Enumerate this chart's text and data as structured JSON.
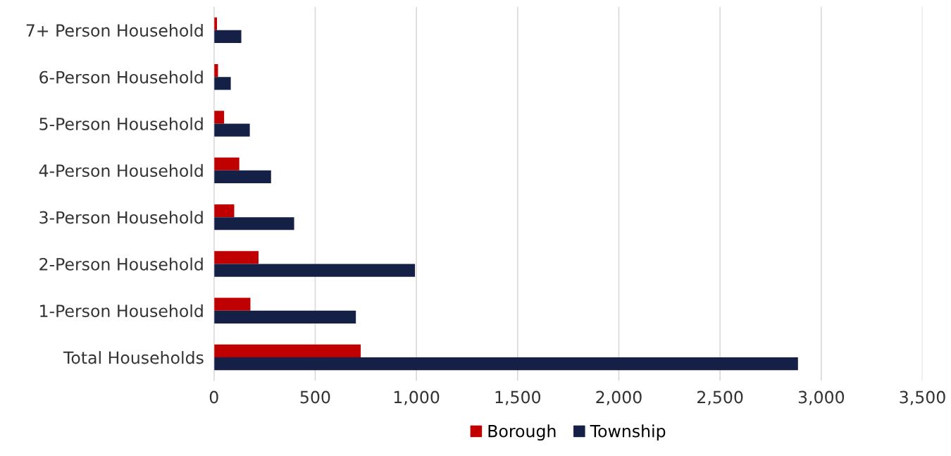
{
  "chart_data": {
    "type": "bar",
    "orientation": "horizontal",
    "categories": [
      "7+ Person Household",
      "6-Person Household",
      "5-Person Household",
      "4-Person Household",
      "3-Person Household",
      "2-Person Household",
      "1-Person Household",
      "Total Households"
    ],
    "series": [
      {
        "name": "Borough",
        "color": "#c00000",
        "values": [
          15,
          20,
          50,
          125,
          100,
          220,
          180,
          725
        ]
      },
      {
        "name": "Township",
        "color": "#142045",
        "values": [
          135,
          83,
          177,
          282,
          396,
          993,
          701,
          2885
        ]
      }
    ],
    "xlim": [
      0,
      3500
    ],
    "xticks": [
      0,
      {
        "value": 500,
        "label": "500"
      },
      {
        "value": 1000,
        "label": "1,000"
      },
      {
        "value": 1500,
        "label": "1,500"
      },
      {
        "value": 2000,
        "label": "2,000"
      },
      {
        "value": 2500,
        "label": "2,500"
      },
      {
        "value": 3000,
        "label": "3,000"
      },
      {
        "value": 3500,
        "label": "3,500"
      }
    ],
    "grid": "x",
    "legend": "bottom"
  }
}
